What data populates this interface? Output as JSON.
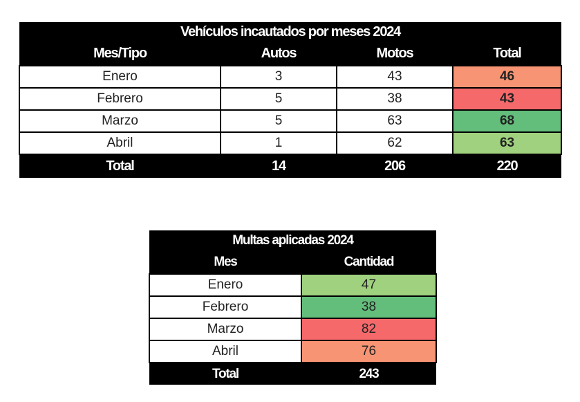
{
  "vehiculos": {
    "title": "Vehículos incautados por meses 2024",
    "headers": [
      "Mes/Tipo",
      "Autos",
      "Motos",
      "Total"
    ],
    "rows": [
      {
        "mes": "Enero",
        "autos": "3",
        "motos": "43",
        "total": "46",
        "color": "#F79473"
      },
      {
        "mes": "Febrero",
        "autos": "5",
        "motos": "38",
        "total": "43",
        "color": "#F5696B"
      },
      {
        "mes": "Marzo",
        "autos": "5",
        "motos": "63",
        "total": "68",
        "color": "#63BE7B"
      },
      {
        "mes": "Abril",
        "autos": "1",
        "motos": "62",
        "total": "63",
        "color": "#9FD17E"
      }
    ],
    "totals": {
      "label": "Total",
      "autos": "14",
      "motos": "206",
      "total": "220"
    }
  },
  "multas": {
    "title": "Multas aplicadas 2024",
    "headers": [
      "Mes",
      "Cantidad"
    ],
    "rows": [
      {
        "mes": "Enero",
        "cantidad": "47",
        "color": "#9FD17E"
      },
      {
        "mes": "Febrero",
        "cantidad": "38",
        "color": "#63BE7B"
      },
      {
        "mes": "Marzo",
        "cantidad": "82",
        "color": "#F5696B"
      },
      {
        "mes": "Abril",
        "cantidad": "76",
        "color": "#F79473"
      }
    ],
    "totals": {
      "label": "Total",
      "cantidad": "243"
    }
  }
}
